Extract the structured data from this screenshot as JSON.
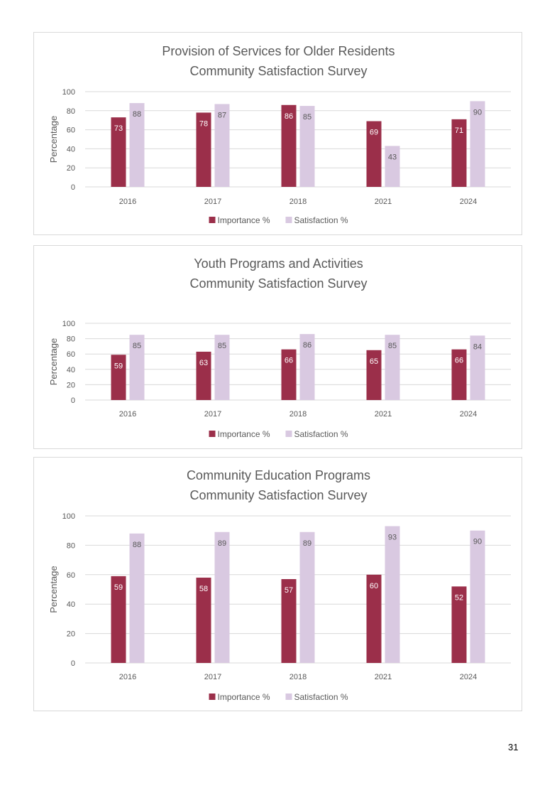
{
  "page": {
    "number": "31"
  },
  "colors": {
    "importance": "#9b2f4a",
    "satisfaction": "#d9c9e1",
    "grid": "#d9d9d9",
    "text": "#595959",
    "title": "#595959"
  },
  "chart_data": [
    {
      "type": "bar",
      "title": "Provision of Services for Older Residents",
      "subtitle": "Community Satisfaction Survey",
      "xlabel": "",
      "ylabel": "Percentage",
      "categories": [
        "2016",
        "2017",
        "2018",
        "2021",
        "2024"
      ],
      "series": [
        {
          "name": "Importance %",
          "values": [
            73,
            78,
            86,
            69,
            71
          ]
        },
        {
          "name": "Satisfaction %",
          "values": [
            88,
            87,
            85,
            43,
            90
          ]
        }
      ],
      "ylim": [
        0,
        100
      ],
      "yticks": [
        "0",
        "20",
        "40",
        "60",
        "80",
        "100"
      ],
      "grid": true,
      "legend": "bottom-center"
    },
    {
      "type": "bar",
      "title": "Youth Programs and Activities",
      "subtitle": "Community Satisfaction Survey",
      "xlabel": "",
      "ylabel": "Percentage",
      "categories": [
        "2016",
        "2017",
        "2018",
        "2021",
        "2024"
      ],
      "series": [
        {
          "name": "Importance %",
          "values": [
            59,
            63,
            66,
            65,
            66
          ]
        },
        {
          "name": "Satisfaction %",
          "values": [
            85,
            85,
            86,
            85,
            84
          ]
        }
      ],
      "ylim": [
        0,
        100
      ],
      "yticks": [
        "0",
        "20",
        "40",
        "60",
        "80",
        "100"
      ],
      "grid": true,
      "legend": "bottom-center"
    },
    {
      "type": "bar",
      "title": "Community Education Programs",
      "subtitle": "Community Satisfaction Survey",
      "xlabel": "",
      "ylabel": "Percentage",
      "categories": [
        "2016",
        "2017",
        "2018",
        "2021",
        "2024"
      ],
      "series": [
        {
          "name": "Importance %",
          "values": [
            59,
            58,
            57,
            60,
            52
          ]
        },
        {
          "name": "Satisfaction %",
          "values": [
            88,
            89,
            89,
            93,
            90
          ]
        }
      ],
      "ylim": [
        0,
        100
      ],
      "yticks": [
        "0",
        "20",
        "40",
        "60",
        "80",
        "100"
      ],
      "grid": true,
      "legend": "bottom-center"
    }
  ]
}
